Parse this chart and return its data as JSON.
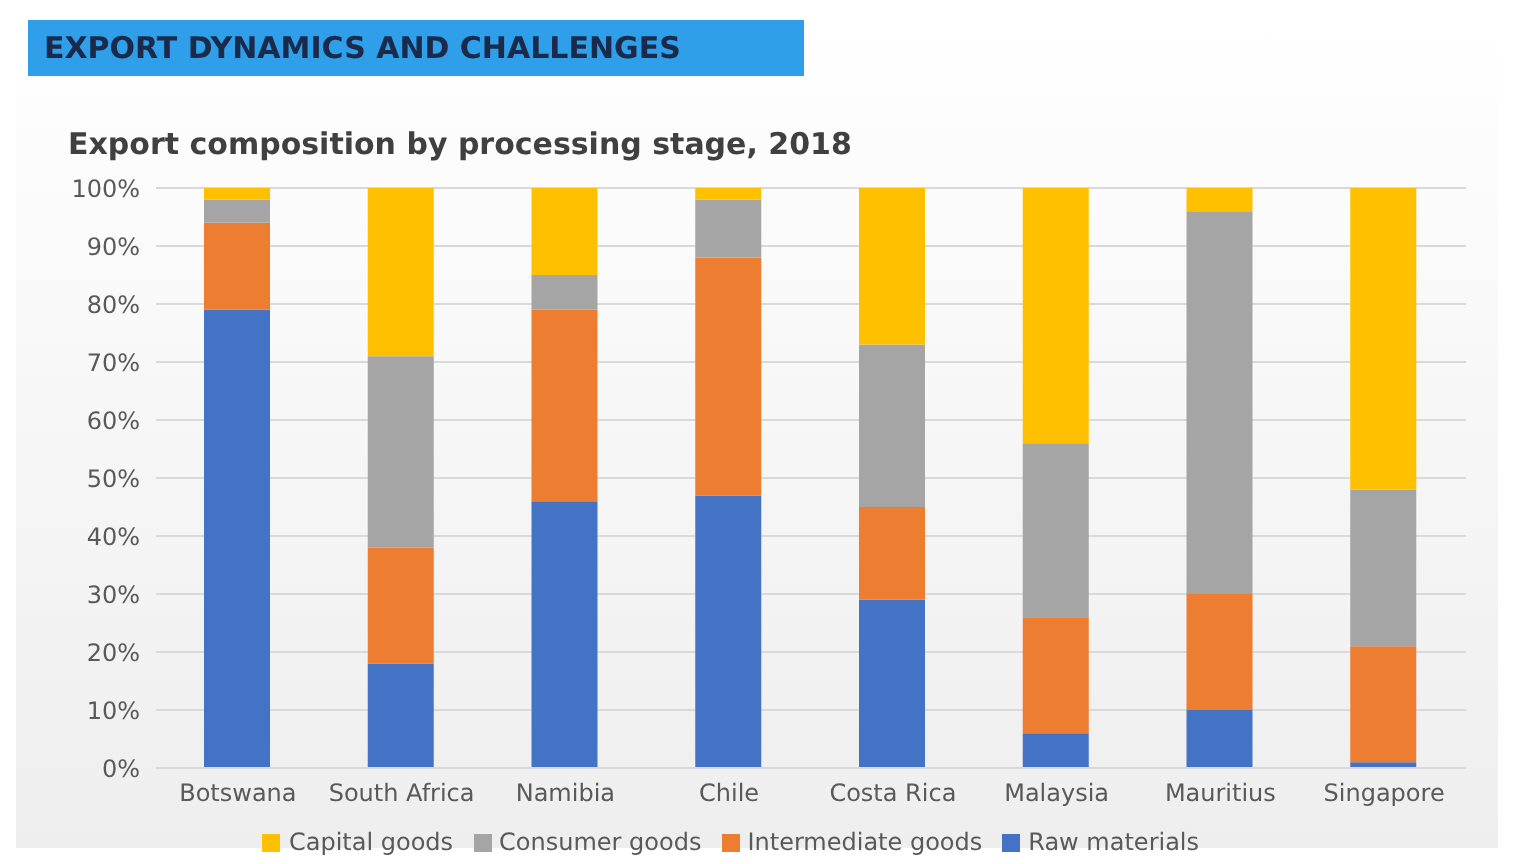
{
  "chart_data": {
    "type": "bar",
    "title": "EXPORT DYNAMICS AND CHALLENGES",
    "subtitle": "Export composition by processing stage, 2018",
    "categories": [
      "Botswana",
      "South Africa",
      "Namibia",
      "Chile",
      "Costa Rica",
      "Malaysia",
      "Mauritius",
      "Singapore"
    ],
    "stacked": true,
    "series": [
      {
        "name": "Raw materials",
        "color": "#4472c4",
        "values": [
          79,
          18,
          46,
          47,
          29,
          6,
          10,
          1
        ]
      },
      {
        "name": "Intermediate goods",
        "color": "#ed7d31",
        "values": [
          15,
          20,
          33,
          41,
          16,
          20,
          20,
          20
        ]
      },
      {
        "name": "Consumer goods",
        "color": "#a5a5a5",
        "values": [
          4,
          33,
          6,
          10,
          28,
          30,
          66,
          27
        ]
      },
      {
        "name": "Capital goods",
        "color": "#ffc000",
        "values": [
          2,
          29,
          15,
          2,
          27,
          44,
          4,
          52
        ]
      }
    ],
    "ylim": [
      0,
      100
    ],
    "yticks": [
      {
        "value": 0,
        "label": "0%"
      },
      {
        "value": 10,
        "label": "10%"
      },
      {
        "value": 20,
        "label": "20%"
      },
      {
        "value": 30,
        "label": "30%"
      },
      {
        "value": 40,
        "label": "40%"
      },
      {
        "value": 50,
        "label": "50%"
      },
      {
        "value": 60,
        "label": "60%"
      },
      {
        "value": 70,
        "label": "70%"
      },
      {
        "value": 80,
        "label": "80%"
      },
      {
        "value": 90,
        "label": "90%"
      },
      {
        "value": 100,
        "label": "100%"
      }
    ],
    "grid": "y",
    "legend": "bottom"
  }
}
